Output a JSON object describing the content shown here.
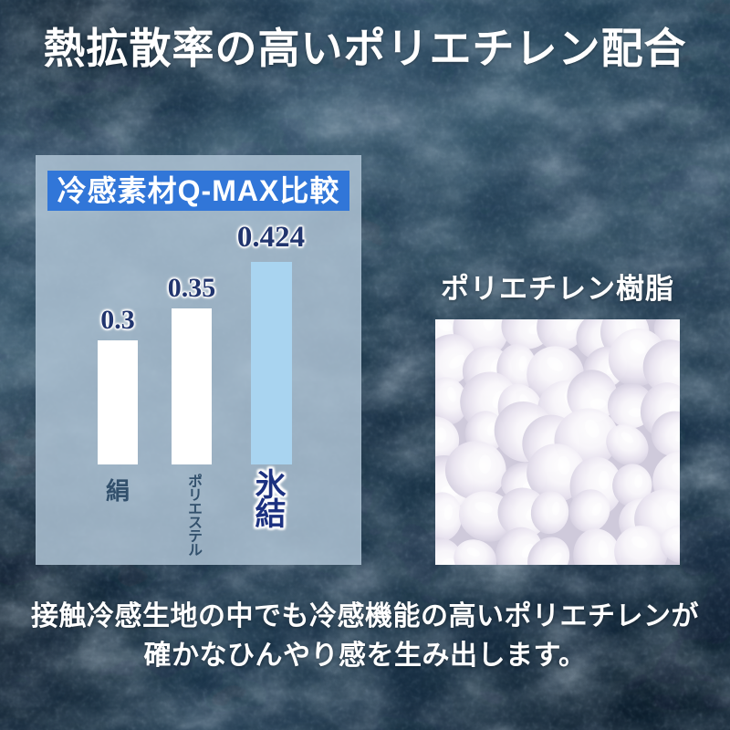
{
  "page": {
    "title": "熱拡散率の高いポリエチレン配合"
  },
  "chart": {
    "header": "冷感素材Q-MAX比較"
  },
  "chart_data": {
    "type": "bar",
    "title": "冷感素材Q-MAX比較",
    "categories": [
      "絹",
      "ポリエステル",
      "氷結"
    ],
    "values": [
      0.3,
      0.35,
      0.424
    ],
    "value_labels": [
      "0.3",
      "0.35",
      "0.424"
    ],
    "bar_colors": [
      "#ffffff",
      "#ffffff",
      "#a9d4f0"
    ],
    "highlight_category": "氷結",
    "xlabel": "",
    "ylabel": "Q-MAX",
    "ylim": [
      0,
      0.45
    ],
    "grid": false,
    "legend_position": "none"
  },
  "photo_section": {
    "label": "ポリエチレン樹脂"
  },
  "caption": {
    "line1": "接触冷感生地の中でも冷感機能の高いポリエチレンが",
    "line2": "確かなひんやり感を生み出します。"
  },
  "colors": {
    "badge_blue": "#3176d8",
    "panel_bg": "#adc2d4",
    "highlight_bar": "#a9d4f0",
    "value_text_navy": "#21356e",
    "category_text": "#32506c",
    "highlight_text_navy": "#1c3180",
    "background_base": "#24425b"
  }
}
